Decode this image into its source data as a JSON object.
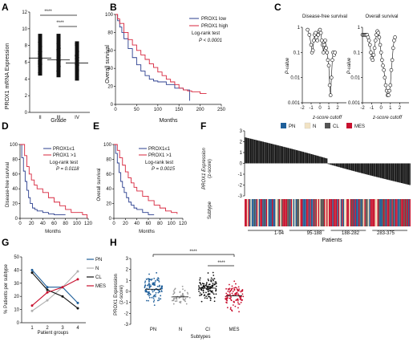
{
  "panels": {
    "A": {
      "letter": "A",
      "ylabel": "PROX1 mRNA Expression",
      "xlabel": "Grade",
      "sig1": "****",
      "sig2": "****"
    },
    "B": {
      "letter": "B",
      "ylabel": "Overall survival",
      "xlabel": "Months",
      "legend_low": "PROX1 low",
      "legend_high": "PROX1 high",
      "test": "Log-rank test",
      "pval": "P < 0.0001"
    },
    "C": {
      "letter": "C",
      "title1": "Disease-free survival",
      "title2": "Overall survival",
      "ylabel": "P-value",
      "xlabel": "z-score cutoff"
    },
    "D": {
      "letter": "D",
      "ylabel": "Disease-free survival",
      "xlabel": "Months",
      "legend1": "PROX1≤1",
      "legend2": "PROX1 >1",
      "test": "Log-rank test",
      "pval": "P = 0.0118"
    },
    "E": {
      "letter": "E",
      "ylabel": "Overall survival",
      "xlabel": "Months",
      "legend1": "PROX1≤1",
      "legend2": "PROX1 >1",
      "test": "Log-rank test",
      "pval": "P = 0.0015"
    },
    "F": {
      "letter": "F",
      "ylabel1": "PROX1 Expression",
      "ylabel2": "(z-score)",
      "subtype_label": "Subtype",
      "xlabel": "Patients",
      "groups": [
        "1-94",
        "95-188",
        "188-282",
        "283-375"
      ],
      "legend": [
        {
          "label": "PN",
          "color": "#1f5f9a"
        },
        {
          "label": "N",
          "color": "#f2e3c4"
        },
        {
          "label": "CL",
          "color": "#555555"
        },
        {
          "label": "MES",
          "color": "#c8102e"
        }
      ]
    },
    "G": {
      "letter": "G",
      "ylabel": "% Patients per subtype",
      "xlabel": "Patient groups"
    },
    "H": {
      "letter": "H",
      "ylabel1": "PROX1 Expression",
      "ylabel2": "(z-score)",
      "xlabel": "Subtypes",
      "sig1": "****",
      "sig2": "****"
    }
  },
  "chart_data": [
    {
      "panel": "A",
      "type": "scatter",
      "title": "",
      "xlabel": "Grade",
      "ylabel": "PROX1 mRNA Expression",
      "categories": [
        "II",
        "III",
        "IV"
      ],
      "medians": [
        6.5,
        6.3,
        5.9
      ],
      "ranges": [
        [
          3.2,
          10.6
        ],
        [
          3.0,
          10.6
        ],
        [
          2.6,
          9.7
        ]
      ],
      "ylim": [
        0,
        12
      ],
      "yticks": [
        0,
        2,
        4,
        6,
        8,
        10,
        12
      ]
    },
    {
      "panel": "B",
      "type": "line",
      "xlabel": "Months",
      "ylabel": "Overall survival",
      "xlim": [
        0,
        250
      ],
      "ylim": [
        0,
        100
      ],
      "xticks": [
        0,
        50,
        100,
        150,
        200,
        250
      ],
      "yticks": [
        0,
        20,
        40,
        60,
        80,
        100
      ],
      "series": [
        {
          "name": "PROX1 low",
          "color": "#2b3f8f",
          "x": [
            0,
            5,
            10,
            15,
            20,
            30,
            40,
            50,
            60,
            70,
            80,
            90,
            100,
            110,
            120,
            130,
            140,
            150,
            160,
            170,
            175
          ],
          "y": [
            100,
            93,
            86,
            80,
            73,
            62,
            52,
            44,
            37,
            32,
            28,
            26,
            25,
            25,
            22,
            22,
            18,
            18,
            16,
            16,
            4
          ]
        },
        {
          "name": "PROX1 high",
          "color": "#d7263d",
          "x": [
            0,
            5,
            10,
            20,
            30,
            40,
            50,
            60,
            70,
            80,
            90,
            100,
            110,
            120,
            130,
            140,
            150,
            160,
            170,
            180,
            200,
            215
          ],
          "y": [
            100,
            95,
            90,
            80,
            72,
            66,
            60,
            55,
            50,
            45,
            41,
            36,
            32,
            28,
            25,
            22,
            18,
            16,
            15,
            14,
            12,
            12
          ]
        }
      ]
    },
    {
      "panel": "C",
      "type": "line",
      "title": "Disease-free survival",
      "xlabel": "z-score cutoff",
      "ylabel": "P-value",
      "yscale": "log",
      "ylim": [
        0.001,
        1
      ],
      "xlim": [
        -2,
        3
      ],
      "xticks": [
        -2,
        -1,
        0,
        1,
        2
      ],
      "series": [
        {
          "name": "",
          "x": [
            -1.4,
            -1.2,
            -1.0,
            -0.9,
            -0.8,
            -0.7,
            -0.6,
            -0.5,
            -0.4,
            -0.3,
            -0.2,
            -0.1,
            0,
            0.1,
            0.2,
            0.3,
            0.4,
            0.5,
            0.6,
            0.7,
            0.8,
            0.9,
            1.0,
            1.1,
            1.2,
            1.3,
            1.4,
            1.5,
            1.6,
            1.7
          ],
          "y": [
            0.8,
            0.5,
            0.2,
            0.1,
            0.12,
            0.3,
            0.5,
            0.6,
            0.4,
            0.3,
            0.5,
            0.7,
            0.8,
            0.6,
            0.3,
            0.2,
            0.1,
            0.2,
            0.3,
            0.15,
            0.1,
            0.05,
            0.03,
            0.005,
            0.002,
            0.01,
            0.05,
            0.1,
            0.08,
            0.1
          ]
        }
      ]
    },
    {
      "panel": "C",
      "type": "line",
      "title": "Overall survival",
      "xlabel": "z-score cutoff",
      "ylabel": "P-value",
      "yscale": "log",
      "ylim": [
        0.001,
        1
      ],
      "xlim": [
        -2,
        3
      ],
      "xticks": [
        -2,
        -1,
        0,
        1,
        2
      ],
      "series": [
        {
          "name": "",
          "x": [
            -2.0,
            -1.9,
            -1.8,
            -1.7,
            -1.6,
            -1.5,
            -1.4,
            -1.3,
            -1.2,
            -1.1,
            -1.0,
            -0.9,
            -0.8,
            -0.7,
            -0.6,
            -0.5,
            -0.4,
            -0.3,
            -0.2,
            -0.1,
            0,
            0.1,
            0.2,
            0.3,
            0.4,
            0.5,
            0.6,
            0.7,
            0.8,
            0.9,
            1.0,
            1.1,
            1.2,
            1.3,
            1.4,
            1.5
          ],
          "y": [
            0.5,
            0.5,
            0.5,
            0.5,
            0.5,
            0.5,
            0.4,
            0.3,
            0.2,
            0.1,
            0.06,
            0.05,
            0.08,
            0.15,
            0.3,
            0.5,
            0.7,
            0.6,
            0.4,
            0.2,
            0.1,
            0.05,
            0.03,
            0.02,
            0.01,
            0.005,
            0.003,
            0.002,
            0.002,
            0.003,
            0.005,
            0.02,
            0.05,
            0.15,
            0.3,
            0.4
          ]
        }
      ]
    },
    {
      "panel": "D",
      "type": "line",
      "xlabel": "Months",
      "ylabel": "Disease-free survival",
      "xlim": [
        0,
        120
      ],
      "ylim": [
        0,
        100
      ],
      "xticks": [
        0,
        20,
        40,
        60,
        80,
        100,
        120
      ],
      "yticks": [
        0,
        20,
        40,
        60,
        80,
        100
      ],
      "series": [
        {
          "name": "PROX1≤1",
          "color": "#2b3f8f",
          "x": [
            0,
            3,
            6,
            9,
            12,
            15,
            18,
            22,
            26,
            30,
            40,
            50,
            60,
            80
          ],
          "y": [
            100,
            82,
            64,
            50,
            38,
            28,
            20,
            14,
            12,
            10,
            8,
            6,
            5,
            5
          ]
        },
        {
          "name": "PROX1 >1",
          "color": "#d7263d",
          "x": [
            0,
            8,
            12,
            16,
            20,
            25,
            30,
            40,
            50,
            60,
            70,
            80,
            90,
            110,
            118
          ],
          "y": [
            100,
            85,
            70,
            60,
            52,
            45,
            40,
            35,
            28,
            22,
            17,
            12,
            8,
            5,
            0
          ]
        }
      ]
    },
    {
      "panel": "E",
      "type": "line",
      "xlabel": "Months",
      "ylabel": "Overall survival",
      "xlim": [
        0,
        120
      ],
      "ylim": [
        0,
        100
      ],
      "xticks": [
        0,
        20,
        40,
        60,
        80,
        100,
        120
      ],
      "yticks": [
        0,
        20,
        40,
        60,
        80,
        100
      ],
      "series": [
        {
          "name": "PROX1≤1",
          "color": "#2b3f8f",
          "x": [
            0,
            3,
            6,
            9,
            12,
            15,
            18,
            22,
            26,
            30,
            35,
            40,
            50,
            60,
            70
          ],
          "y": [
            100,
            88,
            75,
            62,
            50,
            42,
            35,
            28,
            22,
            18,
            14,
            12,
            8,
            5,
            5
          ]
        },
        {
          "name": "PROX1 >1",
          "color": "#d7263d",
          "x": [
            0,
            6,
            10,
            15,
            20,
            25,
            30,
            35,
            40,
            50,
            60,
            70,
            80,
            90,
            100,
            110
          ],
          "y": [
            100,
            92,
            82,
            72,
            63,
            55,
            48,
            42,
            37,
            30,
            24,
            18,
            14,
            10,
            8,
            6
          ]
        }
      ]
    },
    {
      "panel": "F",
      "type": "bar",
      "xlabel": "Patients",
      "ylabel": "PROX1 Expression (z-score)",
      "n": 375,
      "ylim": [
        -3,
        3
      ],
      "yticks": [
        -3,
        -2,
        -1,
        0,
        1,
        2,
        3
      ],
      "range": [
        2.4,
        -2.0
      ],
      "group_ranges": [
        "1-94",
        "95-188",
        "188-282",
        "283-375"
      ]
    },
    {
      "panel": "G",
      "type": "line",
      "xlabel": "Patient groups",
      "ylabel": "% Patients per subtype",
      "categories": [
        1,
        2,
        3,
        4
      ],
      "ylim": [
        0,
        50
      ],
      "yticks": [
        0,
        10,
        20,
        30,
        40,
        50
      ],
      "series": [
        {
          "name": "PN",
          "color": "#1f5f9a",
          "values": [
            40,
            27,
            27,
            15
          ]
        },
        {
          "name": "N",
          "color": "#b0b0b0",
          "values": [
            9,
            17,
            27,
            39
          ]
        },
        {
          "name": "CL",
          "color": "#111111",
          "values": [
            38,
            25,
            20,
            11
          ]
        },
        {
          "name": "MES",
          "color": "#c8102e",
          "values": [
            13,
            23,
            27,
            33
          ]
        }
      ]
    },
    {
      "panel": "H",
      "type": "scatter",
      "xlabel": "Subtypes",
      "ylabel": "PROX1 Expression (z-score)",
      "categories": [
        "PN",
        "N",
        "Cl",
        "MES"
      ],
      "means": [
        0.2,
        -0.5,
        0.3,
        -0.4
      ],
      "ranges": [
        [
          -2.2,
          2.3
        ],
        [
          -1.6,
          1.3
        ],
        [
          -1.7,
          2.7
        ],
        [
          -2.3,
          2.1
        ]
      ],
      "ylim": [
        -3,
        3
      ],
      "yticks": [
        -3,
        -2,
        -1,
        0,
        1,
        2,
        3
      ],
      "colors": [
        "#1f5f9a",
        "#9a9a9a",
        "#111111",
        "#c8102e"
      ]
    }
  ]
}
